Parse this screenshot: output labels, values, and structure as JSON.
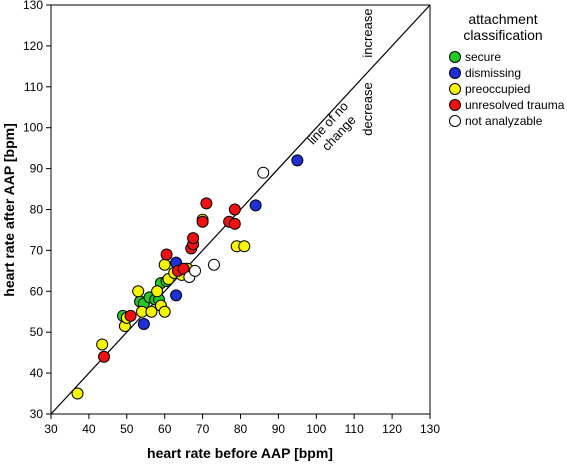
{
  "chart_data": {
    "type": "scatter",
    "xlabel": "heart rate before AAP [bpm]",
    "ylabel": "heart rate after AAP [bpm]",
    "xlim": [
      30,
      130
    ],
    "ylim": [
      30,
      130
    ],
    "xticks": [
      "30",
      "40",
      "50",
      "60",
      "70",
      "80",
      "90",
      "100",
      "110",
      "120",
      "130"
    ],
    "yticks": [
      "30",
      "40",
      "50",
      "60",
      "70",
      "80",
      "90",
      "100",
      "110",
      "120",
      "130"
    ],
    "grid": false,
    "legend_position": "top-right",
    "legend_title_lines": [
      "attachment",
      "classification"
    ],
    "reference_line": {
      "from": [
        30,
        30
      ],
      "to": [
        130,
        130
      ]
    },
    "annotations": {
      "line_label_lines": [
        "line of no",
        "change"
      ],
      "increase": "increase",
      "decrease": "decrease"
    },
    "series": [
      {
        "name": "secure",
        "color": "#22cc22",
        "points": [
          [
            49,
            54
          ],
          [
            53.5,
            57.5
          ],
          [
            54.5,
            57
          ],
          [
            56,
            58.5
          ],
          [
            57.5,
            58
          ],
          [
            58.5,
            58
          ],
          [
            59,
            62
          ],
          [
            60.5,
            62.5
          ]
        ]
      },
      {
        "name": "dismissing",
        "color": "#1f2fd6",
        "points": [
          [
            54.5,
            52
          ],
          [
            63,
            59
          ],
          [
            63,
            67
          ],
          [
            84,
            81
          ],
          [
            95,
            92
          ]
        ]
      },
      {
        "name": "preoccupied",
        "color": "#f5f500",
        "points": [
          [
            37,
            35
          ],
          [
            43.5,
            47
          ],
          [
            49.5,
            51.5
          ],
          [
            50,
            53.5
          ],
          [
            53,
            60
          ],
          [
            54,
            55
          ],
          [
            56.5,
            55
          ],
          [
            58,
            60
          ],
          [
            59,
            56.5
          ],
          [
            60,
            55
          ],
          [
            60,
            66.5
          ],
          [
            61,
            63
          ],
          [
            62.5,
            64.5
          ],
          [
            64.5,
            64
          ],
          [
            66,
            65.5
          ],
          [
            70,
            77.5
          ],
          [
            79,
            71
          ],
          [
            81,
            71
          ]
        ]
      },
      {
        "name": "unresolved trauma",
        "color": "#ee1111",
        "points": [
          [
            44,
            44
          ],
          [
            51,
            54
          ],
          [
            60.5,
            69
          ],
          [
            63.5,
            65
          ],
          [
            65,
            65.5
          ],
          [
            67,
            70.5
          ],
          [
            67.5,
            71.5
          ],
          [
            67.5,
            73
          ],
          [
            70,
            77
          ],
          [
            71,
            81.5
          ],
          [
            77,
            77
          ],
          [
            78.5,
            76.5
          ],
          [
            78.5,
            80
          ]
        ]
      },
      {
        "name": "not analyzable",
        "color": "#ffffff",
        "points": [
          [
            66.5,
            63.5
          ],
          [
            68,
            65
          ],
          [
            73,
            66.5
          ],
          [
            86,
            89
          ]
        ]
      }
    ]
  }
}
